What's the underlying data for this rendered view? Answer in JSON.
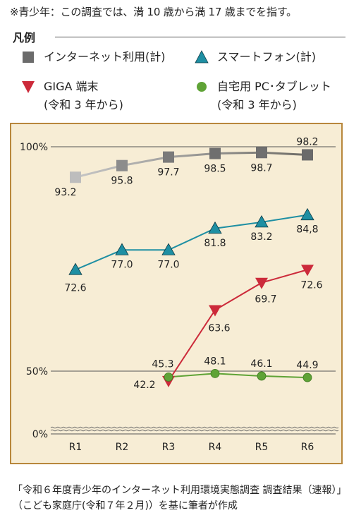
{
  "note": "※青少年：この調査では、満 10 歳から満 17 歳までを指す。",
  "legend": {
    "title": "凡例",
    "items": [
      {
        "label": "インターネット利用(計)",
        "sub": "",
        "color": "#6b6b6b",
        "marker": "square"
      },
      {
        "label": "スマートフォン(計)",
        "sub": "",
        "color": "#1e8fa3",
        "marker": "triangle-up"
      },
      {
        "label": "GIGA 端末",
        "sub": "(令和 3 年から)",
        "color": "#cc2a3a",
        "marker": "triangle-down"
      },
      {
        "label": "自宅用 PC･タブレット",
        "sub": "(令和 3 年から)",
        "color": "#5fa336",
        "marker": "circle"
      }
    ]
  },
  "chart_data": {
    "type": "line",
    "categories": [
      "R1",
      "R2",
      "R3",
      "R4",
      "R5",
      "R6"
    ],
    "y_tick_labels": [
      "0%",
      "50%",
      "100%"
    ],
    "y_ticks": [
      0,
      50,
      100
    ],
    "axis_break": true,
    "series": [
      {
        "name": "インターネット利用(計)",
        "color": "#6b6b6b",
        "marker": "square",
        "values": [
          93.2,
          95.8,
          97.7,
          98.5,
          98.7,
          98.2
        ],
        "labels": [
          "93.2",
          "95.8",
          "97.7",
          "98.5",
          "98.7",
          "98.2"
        ]
      },
      {
        "name": "スマートフォン(計)",
        "color": "#1e8fa3",
        "marker": "triangle-up",
        "values": [
          72.6,
          77.0,
          77.0,
          81.8,
          83.2,
          84.8
        ],
        "labels": [
          "72.6",
          "77.0",
          "77.0",
          "81.8",
          "83.2",
          "84,8"
        ]
      },
      {
        "name": "GIGA 端末",
        "color": "#cc2a3a",
        "marker": "triangle-down",
        "values": [
          null,
          null,
          42.2,
          63.6,
          69.7,
          72.6
        ],
        "labels": [
          null,
          null,
          "42.2",
          "63.6",
          "69.7",
          "72.6"
        ]
      },
      {
        "name": "自宅用 PC･タブレット",
        "color": "#5fa336",
        "marker": "circle",
        "values": [
          null,
          null,
          45.3,
          48.1,
          46.1,
          44.9
        ],
        "labels": [
          null,
          null,
          "45.3",
          "48.1",
          "46.1",
          "44.9"
        ]
      }
    ]
  },
  "caption": "「令和６年度青少年のインターネット利用環境実態調査 調査結果（速報）」（こども家庭庁(令和７年２月)）を基に筆者が作成"
}
